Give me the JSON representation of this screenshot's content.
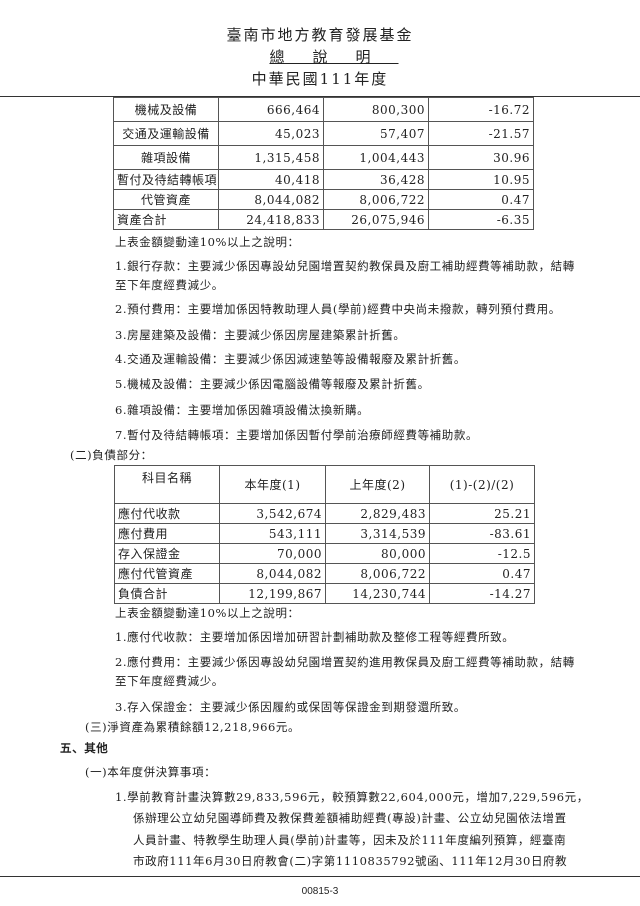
{
  "header": {
    "org": "臺南市地方教育發展基金",
    "doc": "總說明",
    "year": "中華民國111年度"
  },
  "assets_table": {
    "rows": [
      {
        "name": "機械及設備",
        "current": "666,464",
        "previous": "800,300",
        "change": "-16.72"
      },
      {
        "name": "交通及運輸設備",
        "current": "45,023",
        "previous": "57,407",
        "change": "-21.57"
      },
      {
        "name": "雜項設備",
        "current": "1,315,458",
        "previous": "1,004,443",
        "change": "30.96"
      },
      {
        "name": "暫付及待結轉帳項",
        "current": "40,418",
        "previous": "36,428",
        "change": "10.95"
      },
      {
        "name": "代管資產",
        "current": "8,044,082",
        "previous": "8,006,722",
        "change": "0.47"
      },
      {
        "name": "資產合計",
        "current": "24,418,833",
        "previous": "26,075,946",
        "change": "-6.35"
      }
    ]
  },
  "assets_notes": {
    "intro": "上表金額變動達10%以上之說明：",
    "lines": [
      "1.銀行存款：主要減少係因專設幼兒園增置契約教保員及廚工補助經費等補助款，結轉",
      "至下年度經費減少。",
      "2.預付費用：主要增加係因特教助理人員(學前)經費中央尚未撥款，轉列預付費用。",
      "3.房屋建築及設備：主要減少係因房屋建築累計折舊。",
      "4.交通及運輸設備：主要減少係因減速墊等設備報廢及累計折舊。",
      "5.機械及設備：主要減少係因電腦設備等報廢及累計折舊。",
      "6.雜項設備：主要增加係因雜項設備汰換新購。",
      "7.暫付及待結轉帳項：主要增加係因暫付學前治療師經費等補助款。"
    ]
  },
  "liabilities": {
    "heading": "(二)負債部分：",
    "columns": [
      "科目名稱",
      "本年度(1)",
      "上年度(2)",
      "(1)-(2)/(2)"
    ],
    "rows": [
      {
        "name": "應付代收款",
        "current": "3,542,674",
        "previous": "2,829,483",
        "change": "25.21"
      },
      {
        "name": "應付費用",
        "current": "543,111",
        "previous": "3,314,539",
        "change": "-83.61"
      },
      {
        "name": "存入保證金",
        "current": "70,000",
        "previous": "80,000",
        "change": "-12.5"
      },
      {
        "name": "應付代管資產",
        "current": "8,044,082",
        "previous": "8,006,722",
        "change": "0.47"
      },
      {
        "name": "負債合計",
        "current": "12,199,867",
        "previous": "14,230,744",
        "change": "-14.27"
      }
    ]
  },
  "liabilities_notes": {
    "intro": "上表金額變動達10%以上之說明：",
    "lines": [
      "1.應付代收款：主要增加係因增加研習計劃補助款及整修工程等經費所致。",
      "2.應付費用：主要減少係因專設幼兒園增置契約進用教保員及廚工經費等補助款，結轉",
      "至下年度經費減少。",
      "3.存入保證金：主要減少係因履約或保固等保證金到期發還所致。"
    ]
  },
  "net_assets": "(三)淨資產為累積餘額12,218,966元。",
  "section5": {
    "heading": "五、其他",
    "sub": "(一)本年度併決算事項：",
    "lines": [
      "1.學前教育計畫決算數29,833,596元，較預算數22,604,000元，增加7,229,596元，",
      "係辦理公立幼兒園導師費及教保費差額補助經費(專設)計畫、公立幼兒園依法增置",
      "人員計畫、特教學生助理人員(學前)計畫等，因未及於111年度編列預算，經臺南",
      "市政府111年6月30日府教會(二)字第1110835792號函、111年12月30日府教"
    ]
  },
  "footer": "00815-3"
}
